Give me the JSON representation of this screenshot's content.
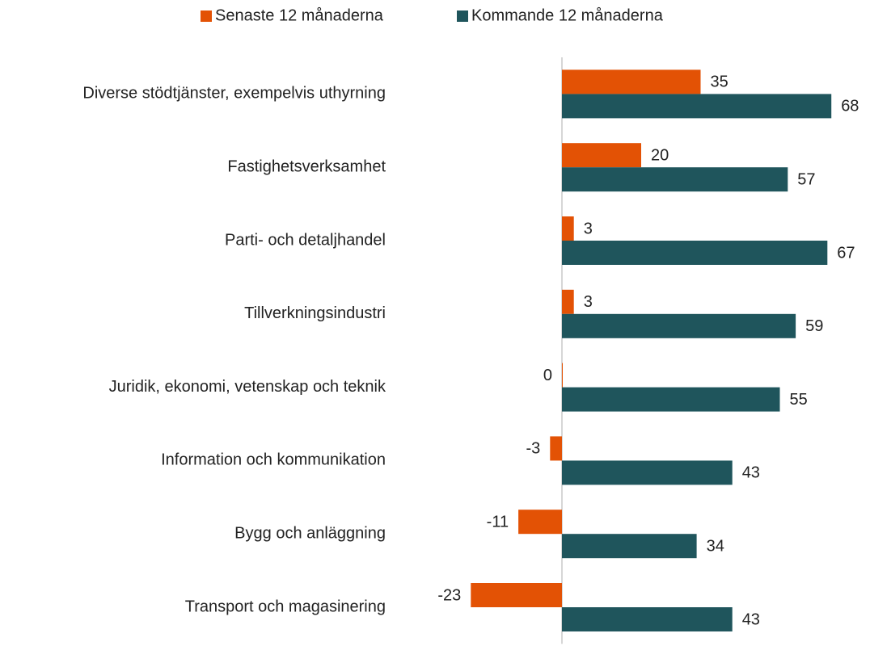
{
  "chart_data": {
    "type": "bar",
    "orientation": "horizontal",
    "categories": [
      "Diverse stödtjänster, exempelvis uthyrning",
      "Fastighetsverksamhet",
      "Parti- och detaljhandel",
      "Tillverkningsindustri",
      "Juridik, ekonomi, vetenskap och teknik",
      "Information och kommunikation",
      "Bygg och anläggning",
      "Transport och magasinering"
    ],
    "series": [
      {
        "name": "Senaste 12 månaderna",
        "color": "#e35205",
        "values": [
          35,
          20,
          3,
          3,
          0,
          -3,
          -11,
          -23
        ]
      },
      {
        "name": "Kommande 12 månaderna",
        "color": "#1f555c",
        "values": [
          68,
          57,
          67,
          59,
          55,
          43,
          34,
          43
        ]
      }
    ],
    "xlim": [
      -30,
      70
    ],
    "legend": "top"
  }
}
